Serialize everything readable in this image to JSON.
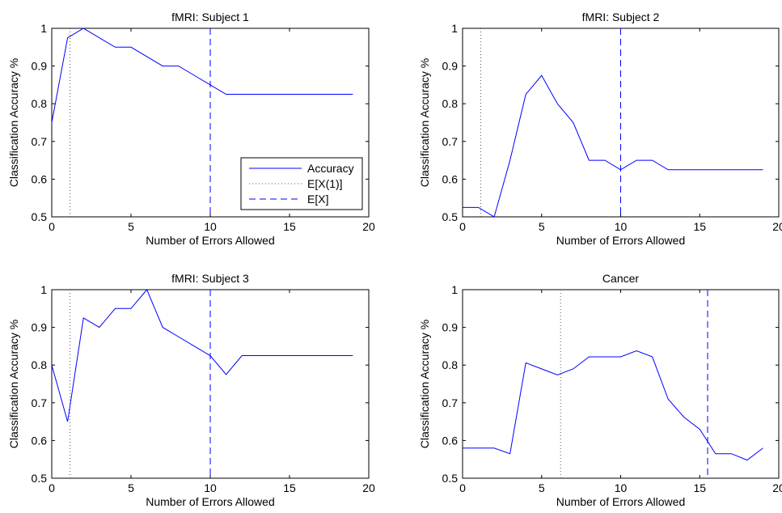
{
  "chart_data": [
    {
      "type": "line",
      "title": "fMRI: Subject 1",
      "xlabel": "Number of Errors Allowed",
      "ylabel": "Classification Accuracy %",
      "xlim": [
        0,
        20
      ],
      "ylim": [
        0.5,
        1
      ],
      "xticks": [
        "0",
        "5",
        "10",
        "15",
        "20"
      ],
      "yticks": [
        "0.5",
        "0.6",
        "0.7",
        "0.8",
        "0.9",
        "1"
      ],
      "x": [
        0,
        1,
        2,
        3,
        4,
        5,
        6,
        7,
        8,
        9,
        10,
        11,
        12,
        13,
        14,
        15,
        16,
        17,
        18,
        19
      ],
      "series": [
        {
          "name": "Accuracy",
          "values": [
            0.75,
            0.975,
            1.0,
            0.975,
            0.95,
            0.95,
            0.925,
            0.9,
            0.9,
            0.875,
            0.85,
            0.825,
            0.825,
            0.825,
            0.825,
            0.825,
            0.825,
            0.825,
            0.825,
            0.825
          ]
        }
      ],
      "vlines": [
        {
          "name": "E[X(1)]",
          "x": 1.15,
          "style": "dotted",
          "color": "#555555"
        },
        {
          "name": "E[X]",
          "x": 10,
          "style": "dashed",
          "color": "#0000ff"
        }
      ],
      "legend": {
        "placement": "bottom-right",
        "entries": [
          "Accuracy",
          "E[X(1)]",
          "E[X]"
        ]
      },
      "grid": false
    },
    {
      "type": "line",
      "title": "fMRI: Subject 2",
      "xlabel": "Number of Errors Allowed",
      "ylabel": "Classification Accuracy %",
      "xlim": [
        0,
        20
      ],
      "ylim": [
        0.5,
        1
      ],
      "xticks": [
        "0",
        "5",
        "10",
        "15",
        "20"
      ],
      "yticks": [
        "0.5",
        "0.6",
        "0.7",
        "0.8",
        "0.9",
        "1"
      ],
      "x": [
        0,
        1,
        2,
        3,
        4,
        5,
        6,
        7,
        8,
        9,
        10,
        11,
        12,
        13,
        14,
        15,
        16,
        17,
        18,
        19
      ],
      "series": [
        {
          "name": "Accuracy",
          "values": [
            0.525,
            0.525,
            0.5,
            0.65,
            0.825,
            0.875,
            0.8,
            0.75,
            0.65,
            0.65,
            0.625,
            0.65,
            0.65,
            0.625,
            0.625,
            0.625,
            0.625,
            0.625,
            0.625,
            0.625
          ]
        }
      ],
      "vlines": [
        {
          "name": "E[X(1)]",
          "x": 1.15,
          "style": "dotted",
          "color": "#555555"
        },
        {
          "name": "E[X]",
          "x": 10,
          "style": "dashed",
          "color": "#0000ff"
        }
      ],
      "grid": false
    },
    {
      "type": "line",
      "title": "fMRI: Subject 3",
      "xlabel": "Number of Errors Allowed",
      "ylabel": "Classification Accuracy %",
      "xlim": [
        0,
        20
      ],
      "ylim": [
        0.5,
        1
      ],
      "xticks": [
        "0",
        "5",
        "10",
        "15",
        "20"
      ],
      "yticks": [
        "0.5",
        "0.6",
        "0.7",
        "0.8",
        "0.9",
        "1"
      ],
      "x": [
        0,
        1,
        2,
        3,
        4,
        5,
        6,
        7,
        8,
        9,
        10,
        11,
        12,
        13,
        14,
        15,
        16,
        17,
        18,
        19
      ],
      "series": [
        {
          "name": "Accuracy",
          "values": [
            0.8,
            0.65,
            0.925,
            0.9,
            0.95,
            0.95,
            1.0,
            0.9,
            0.875,
            0.85,
            0.825,
            0.775,
            0.825,
            0.825,
            0.825,
            0.825,
            0.825,
            0.825,
            0.825,
            0.825
          ]
        }
      ],
      "vlines": [
        {
          "name": "E[X(1)]",
          "x": 1.15,
          "style": "dotted",
          "color": "#555555"
        },
        {
          "name": "E[X]",
          "x": 10,
          "style": "dashed",
          "color": "#0000ff"
        }
      ],
      "grid": false
    },
    {
      "type": "line",
      "title": "Cancer",
      "xlabel": "Number of Errors Allowed",
      "ylabel": "Classification Accuracy %",
      "xlim": [
        0,
        20
      ],
      "ylim": [
        0.5,
        1
      ],
      "xticks": [
        "0",
        "5",
        "10",
        "15",
        "20"
      ],
      "yticks": [
        "0.5",
        "0.6",
        "0.7",
        "0.8",
        "0.9",
        "1"
      ],
      "x": [
        0,
        1,
        2,
        3,
        4,
        5,
        6,
        7,
        8,
        9,
        10,
        11,
        12,
        13,
        14,
        15,
        16,
        17,
        18,
        19
      ],
      "series": [
        {
          "name": "Accuracy",
          "values": [
            0.58,
            0.58,
            0.58,
            0.565,
            0.806,
            0.79,
            0.774,
            0.79,
            0.822,
            0.822,
            0.822,
            0.838,
            0.822,
            0.71,
            0.662,
            0.63,
            0.565,
            0.565,
            0.548,
            0.58
          ]
        }
      ],
      "vlines": [
        {
          "name": "E[X(1)]",
          "x": 6.2,
          "style": "dotted",
          "color": "#555555"
        },
        {
          "name": "E[X]",
          "x": 15.5,
          "style": "dashed",
          "color": "#0000ff"
        }
      ],
      "grid": false
    }
  ],
  "colors": {
    "line": "#0000ff",
    "dotted": "#555555",
    "dashed": "#0000ff",
    "axis": "#000000"
  }
}
